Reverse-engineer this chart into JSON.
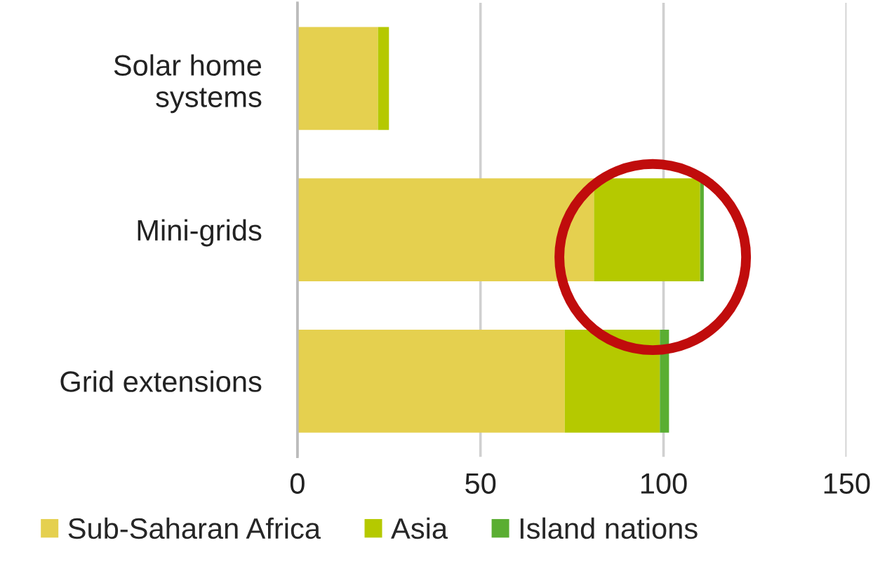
{
  "chart_data": {
    "type": "bar",
    "orientation": "horizontal",
    "stacked": true,
    "categories": [
      "Solar home\nsystems",
      "Mini-grids",
      "Grid extensions"
    ],
    "series": [
      {
        "name": "Sub-Saharan Africa",
        "color": "#e5d04f",
        "values": [
          22,
          81,
          73
        ]
      },
      {
        "name": "Asia",
        "color": "#b5c900",
        "values": [
          3,
          29,
          26
        ]
      },
      {
        "name": "Island nations",
        "color": "#5aae32",
        "values": [
          0,
          1,
          2.5
        ]
      }
    ],
    "xlim": [
      0,
      150
    ],
    "xticks": [
      0,
      50,
      100,
      150
    ],
    "grid": "x",
    "legend": "bottom"
  }
}
